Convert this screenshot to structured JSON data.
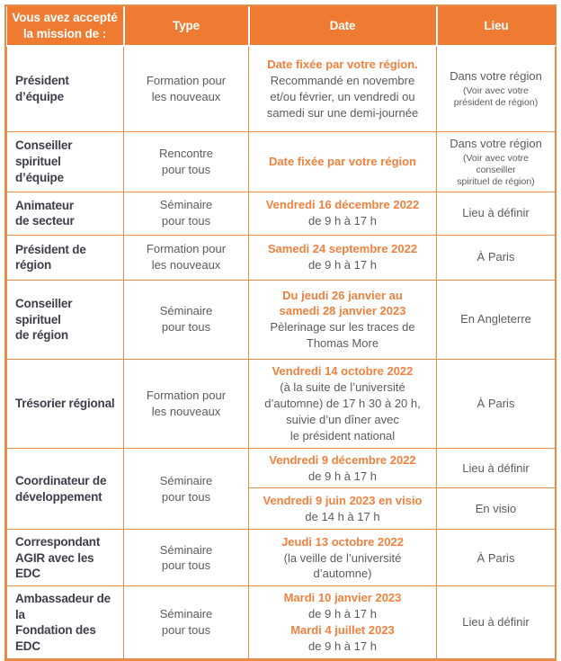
{
  "colors": {
    "brand_orange": "#EE7B31",
    "border_orange": "#E98C47",
    "highlight_text_orange": "#F0813E",
    "mission_text": "#3E3E4A",
    "body_text": "#5A5B60"
  },
  "table": {
    "headers": [
      "Vous avez accepté\nla mission de :",
      "Type",
      "Date",
      "Lieu"
    ],
    "rows": [
      {
        "mission": "Président d’équipe",
        "type": "Formation pour\nles nouveaux",
        "date_highlight": "Date fixée par votre région.",
        "date_detail": "Recommandé en novembre\net/ou février, un vendredi ou\nsamedi sur une demi-journée",
        "lieu": "Dans votre région",
        "lieu_note": "(Voir avec votre\nprésident de région)"
      },
      {
        "mission": "Conseiller spirituel\nd’équipe",
        "type": "Rencontre\npour tous",
        "date_highlight": "Date fixée par votre région",
        "lieu": "Dans votre région",
        "lieu_note": "(Voir avec votre conseiller\nspirituel de région)"
      },
      {
        "mission": "Animateur\nde secteur",
        "type": "Séminaire\npour tous",
        "date_highlight": "Vendredi 16 décembre 2022",
        "date_detail": "de 9 h à 17 h",
        "lieu": "Lieu à définir"
      },
      {
        "mission": "Président de\nrégion",
        "type": "Formation pour\nles nouveaux",
        "date_highlight": "Samedi 24 septembre 2022",
        "date_detail": "de 9 h à 17 h",
        "lieu": "À Paris"
      },
      {
        "mission": "Conseiller spirituel\nde région",
        "type": "Séminaire\npour tous",
        "date_highlight": "Du jeudi 26 janvier au\nsamedi 28 janvier 2023",
        "date_detail": "Pèlerinage sur les traces de\nThomas More",
        "lieu": "En Angleterre"
      },
      {
        "mission": "Trésorier régional",
        "type": "Formation pour\nles nouveaux",
        "date_highlight": "Vendredi 14 octobre 2022",
        "date_detail": "(à la suite de l’université\nd’automne) de 17 h 30 à 20 h,\nsuivie d’un dîner avec\nle président national",
        "lieu": "À Paris"
      },
      {
        "mission": "Coordinateur de\ndéveloppement",
        "type": "Séminaire\npour tous",
        "sub_rows": [
          {
            "date_highlight": "Vendredi 9 décembre 2022",
            "date_detail": "de 9 h à 17 h",
            "lieu": "Lieu à définir"
          },
          {
            "date_highlight": "Vendredi 9 juin 2023 en visio",
            "date_detail": "de 14 h à 17 h",
            "lieu": "En visio"
          }
        ]
      },
      {
        "mission": "Correspondant\nAGIR avec les EDC",
        "type": "Séminaire\npour tous",
        "date_highlight": "Jeudi 13 octobre 2022",
        "date_detail": "(la veille de l’université\nd’automne)",
        "lieu": "À Paris"
      },
      {
        "mission": "Ambassadeur de la\nFondation des EDC",
        "type": "Séminaire\npour tous",
        "dates": [
          {
            "highlight": "Mardi 10 janvier 2023",
            "detail": "de 9 h à 17 h"
          },
          {
            "highlight": "Mardi 4 juillet 2023",
            "detail": "de 9 h à 17 h"
          }
        ],
        "lieu": "Lieu à définir"
      }
    ]
  }
}
